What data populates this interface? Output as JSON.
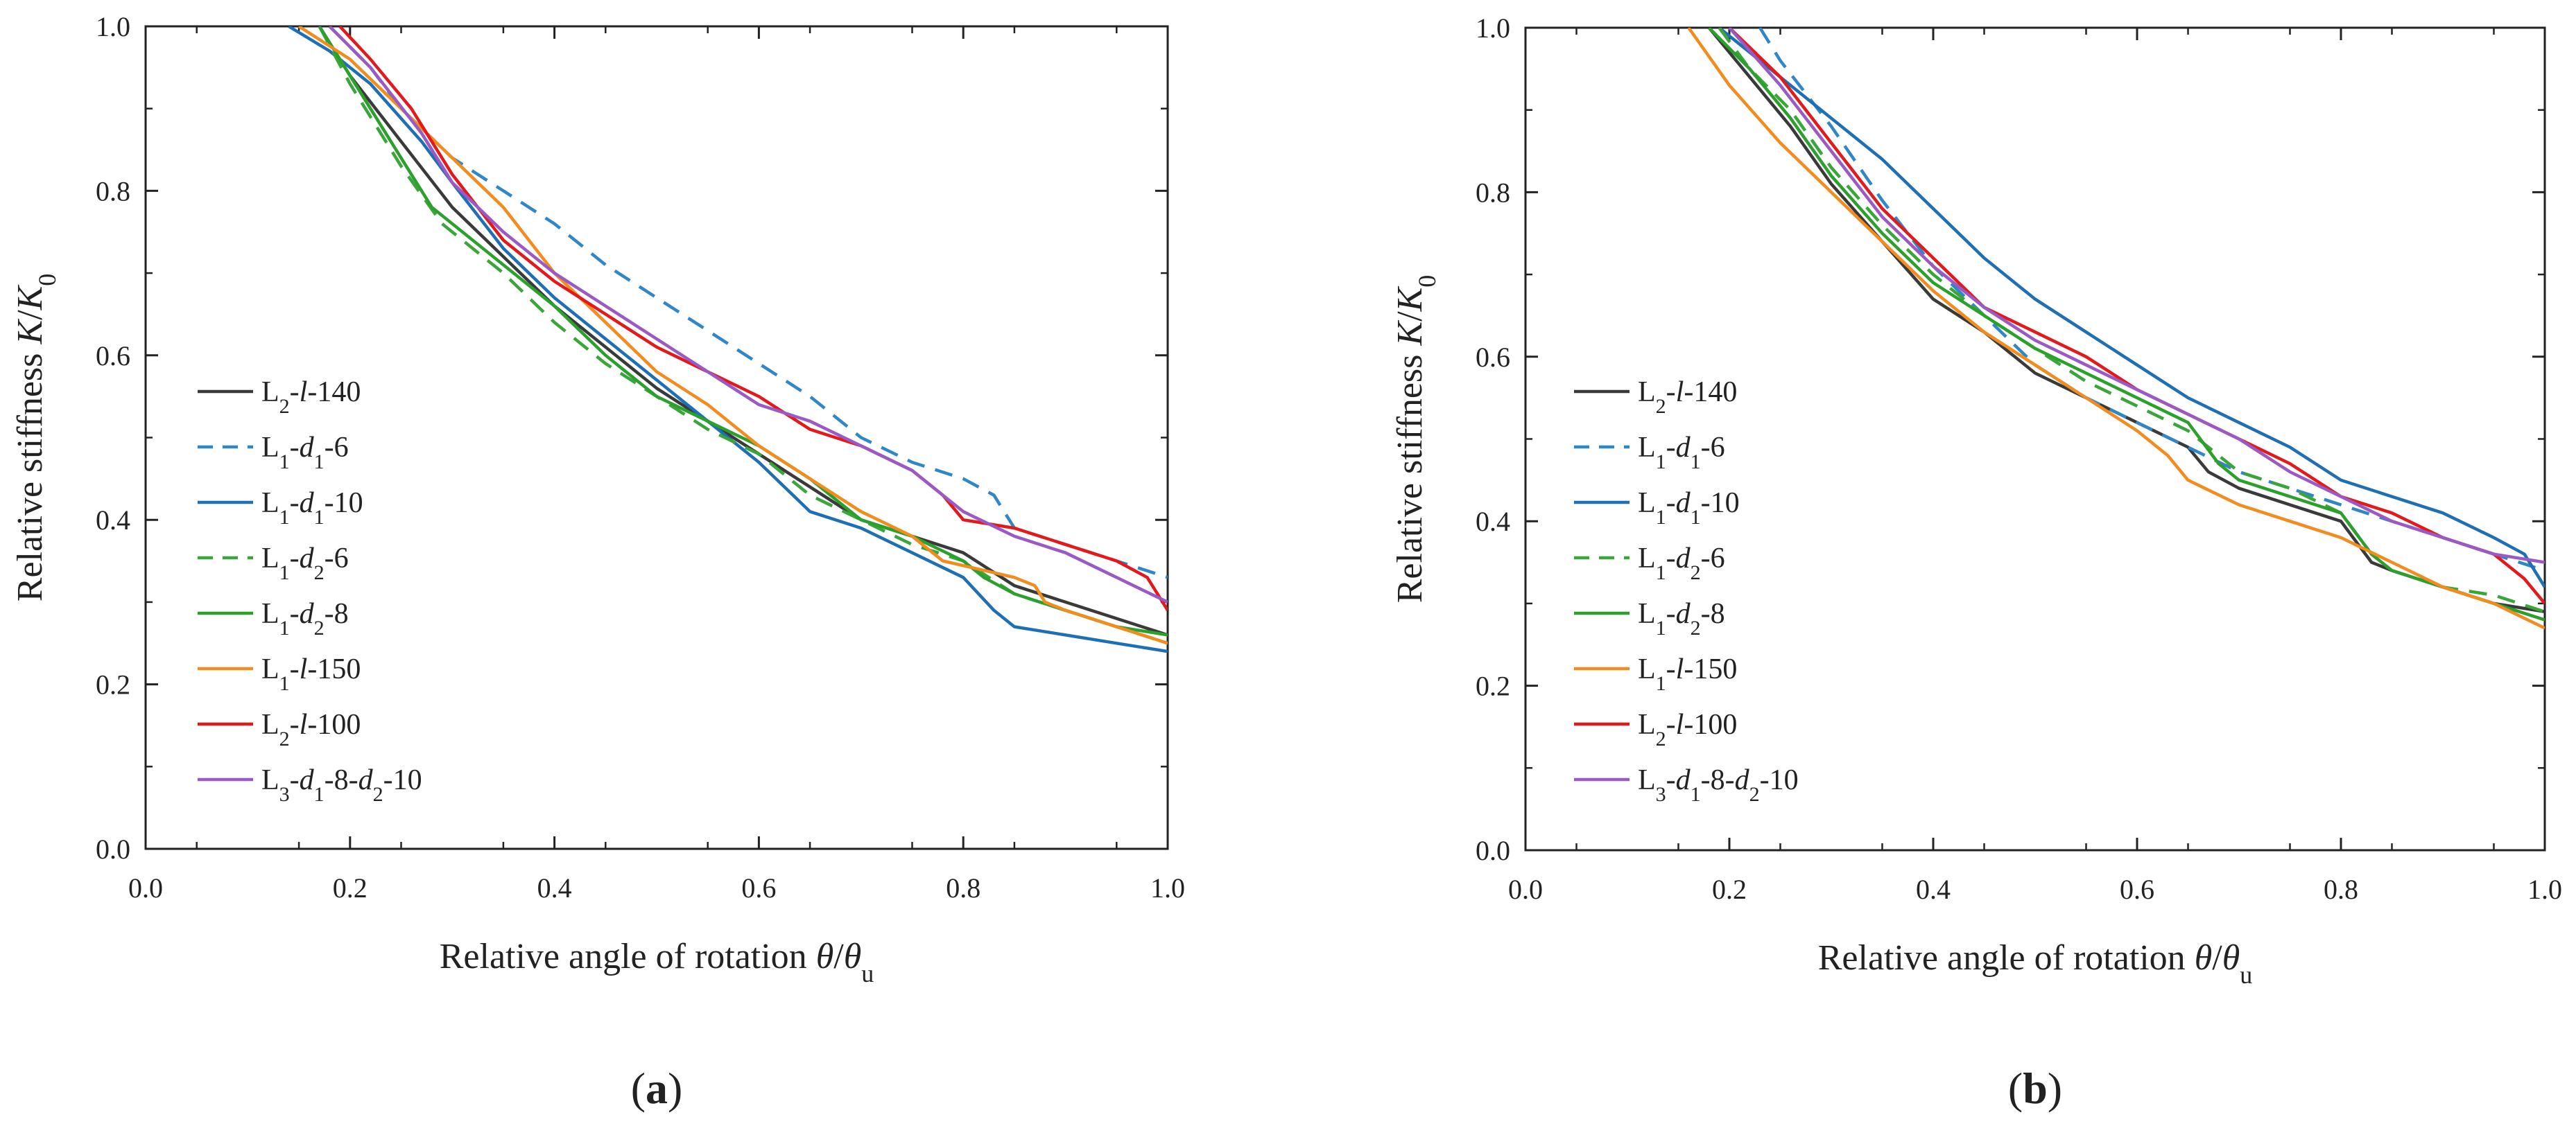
{
  "figure": {
    "panel_labels": [
      "(a)",
      "(b)"
    ]
  },
  "chart_data": [
    {
      "type": "line",
      "panel": "(a)",
      "xlabel": "Relative angle of rotation θ/θu",
      "ylabel": "Relative stiffness K/K0",
      "xlim": [
        0.0,
        1.0
      ],
      "ylim": [
        0.0,
        1.0
      ],
      "xticks": [
        "0.0",
        "0.2",
        "0.4",
        "0.6",
        "0.8",
        "1.0"
      ],
      "yticks": [
        "0.0",
        "0.2",
        "0.4",
        "0.6",
        "0.8",
        "1.0"
      ],
      "grid": false,
      "legend_position": "center-left",
      "series": [
        {
          "name": "L2-l-140",
          "color": "#3a3a3a",
          "dash": false,
          "x": [
            0.17,
            0.2,
            0.25,
            0.3,
            0.35,
            0.4,
            0.45,
            0.5,
            0.55,
            0.6,
            0.65,
            0.7,
            0.75,
            0.8,
            0.85,
            0.9,
            0.95,
            1.0
          ],
          "y": [
            1.0,
            0.94,
            0.86,
            0.78,
            0.72,
            0.66,
            0.61,
            0.56,
            0.52,
            0.48,
            0.44,
            0.4,
            0.38,
            0.36,
            0.32,
            0.3,
            0.28,
            0.26
          ]
        },
        {
          "name": "L1-d1-6",
          "color": "#2f87c8",
          "dash": true,
          "x": [
            0.18,
            0.22,
            0.25,
            0.3,
            0.35,
            0.4,
            0.45,
            0.5,
            0.55,
            0.6,
            0.65,
            0.7,
            0.75,
            0.8,
            0.83,
            0.85,
            0.9,
            0.95,
            1.0
          ],
          "y": [
            1.0,
            0.95,
            0.9,
            0.84,
            0.8,
            0.76,
            0.71,
            0.67,
            0.63,
            0.59,
            0.55,
            0.5,
            0.47,
            0.45,
            0.43,
            0.39,
            0.37,
            0.35,
            0.33
          ]
        },
        {
          "name": "L1-d1-10",
          "color": "#1f6fb5",
          "dash": false,
          "x": [
            0.14,
            0.18,
            0.22,
            0.27,
            0.3,
            0.35,
            0.4,
            0.45,
            0.5,
            0.55,
            0.6,
            0.65,
            0.7,
            0.75,
            0.8,
            0.83,
            0.85,
            0.9,
            0.95,
            1.0
          ],
          "y": [
            1.0,
            0.97,
            0.93,
            0.86,
            0.81,
            0.73,
            0.67,
            0.62,
            0.57,
            0.52,
            0.47,
            0.41,
            0.39,
            0.36,
            0.33,
            0.29,
            0.27,
            0.26,
            0.25,
            0.24
          ]
        },
        {
          "name": "L1-d2-6",
          "color": "#3aa63a",
          "dash": true,
          "x": [
            0.17,
            0.2,
            0.25,
            0.29,
            0.35,
            0.4,
            0.45,
            0.5,
            0.55,
            0.6,
            0.65,
            0.7,
            0.75,
            0.8,
            0.85,
            0.9,
            0.95,
            1.0
          ],
          "y": [
            1.0,
            0.93,
            0.83,
            0.76,
            0.7,
            0.64,
            0.59,
            0.55,
            0.51,
            0.48,
            0.43,
            0.4,
            0.37,
            0.35,
            0.31,
            0.29,
            0.27,
            0.25
          ]
        },
        {
          "name": "L1-d2-8",
          "color": "#2ca02c",
          "dash": false,
          "x": [
            0.17,
            0.2,
            0.25,
            0.28,
            0.35,
            0.4,
            0.45,
            0.5,
            0.55,
            0.6,
            0.65,
            0.7,
            0.75,
            0.8,
            0.82,
            0.85,
            0.9,
            0.95,
            1.0
          ],
          "y": [
            1.0,
            0.94,
            0.84,
            0.78,
            0.71,
            0.66,
            0.6,
            0.55,
            0.52,
            0.49,
            0.45,
            0.4,
            0.38,
            0.35,
            0.33,
            0.31,
            0.29,
            0.27,
            0.26
          ]
        },
        {
          "name": "L1-l-150",
          "color": "#f28c1e",
          "dash": false,
          "x": [
            0.15,
            0.2,
            0.25,
            0.3,
            0.35,
            0.4,
            0.45,
            0.5,
            0.55,
            0.6,
            0.65,
            0.7,
            0.75,
            0.78,
            0.85,
            0.87,
            0.88,
            0.9,
            0.95,
            1.0
          ],
          "y": [
            1.0,
            0.96,
            0.9,
            0.84,
            0.78,
            0.7,
            0.64,
            0.58,
            0.54,
            0.49,
            0.45,
            0.41,
            0.38,
            0.35,
            0.33,
            0.32,
            0.3,
            0.29,
            0.27,
            0.25
          ]
        },
        {
          "name": "L2-l-100",
          "color": "#e31a1c",
          "dash": false,
          "x": [
            0.19,
            0.22,
            0.26,
            0.3,
            0.35,
            0.4,
            0.45,
            0.5,
            0.55,
            0.6,
            0.65,
            0.7,
            0.75,
            0.78,
            0.8,
            0.85,
            0.9,
            0.95,
            0.98,
            1.0
          ],
          "y": [
            1.0,
            0.96,
            0.9,
            0.82,
            0.74,
            0.69,
            0.65,
            0.61,
            0.58,
            0.55,
            0.51,
            0.49,
            0.46,
            0.43,
            0.4,
            0.39,
            0.37,
            0.35,
            0.33,
            0.29
          ]
        },
        {
          "name": "L3-d1-8-d2-10",
          "color": "#9b59c4",
          "dash": false,
          "x": [
            0.18,
            0.22,
            0.27,
            0.3,
            0.35,
            0.4,
            0.45,
            0.5,
            0.55,
            0.6,
            0.65,
            0.7,
            0.75,
            0.78,
            0.8,
            0.85,
            0.9,
            0.95,
            1.0
          ],
          "y": [
            1.0,
            0.95,
            0.87,
            0.81,
            0.75,
            0.7,
            0.66,
            0.62,
            0.58,
            0.54,
            0.52,
            0.49,
            0.46,
            0.43,
            0.41,
            0.38,
            0.36,
            0.33,
            0.3
          ]
        }
      ]
    },
    {
      "type": "line",
      "panel": "(b)",
      "xlabel": "Relative angle of rotation θ/θu",
      "ylabel": "Relative stiffness K/K0",
      "xlim": [
        0.0,
        1.0
      ],
      "ylim": [
        0.0,
        1.0
      ],
      "xticks": [
        "0.0",
        "0.2",
        "0.4",
        "0.6",
        "0.8",
        "1.0"
      ],
      "yticks": [
        "0.0",
        "0.2",
        "0.4",
        "0.6",
        "0.8",
        "1.0"
      ],
      "grid": false,
      "legend_position": "center-left",
      "series": [
        {
          "name": "L2-l-140",
          "color": "#3a3a3a",
          "dash": false,
          "x": [
            0.18,
            0.22,
            0.26,
            0.3,
            0.35,
            0.4,
            0.45,
            0.5,
            0.55,
            0.6,
            0.65,
            0.67,
            0.7,
            0.75,
            0.8,
            0.83,
            0.85,
            0.9,
            0.95,
            1.0
          ],
          "y": [
            1.0,
            0.94,
            0.88,
            0.81,
            0.74,
            0.67,
            0.63,
            0.58,
            0.55,
            0.52,
            0.49,
            0.46,
            0.44,
            0.42,
            0.4,
            0.35,
            0.34,
            0.32,
            0.3,
            0.29
          ]
        },
        {
          "name": "L1-d1-6",
          "color": "#2f87c8",
          "dash": true,
          "x": [
            0.23,
            0.25,
            0.3,
            0.35,
            0.4,
            0.45,
            0.5,
            0.55,
            0.6,
            0.65,
            0.7,
            0.75,
            0.8,
            0.85,
            0.9,
            0.95,
            1.0
          ],
          "y": [
            1.0,
            0.96,
            0.88,
            0.79,
            0.71,
            0.65,
            0.59,
            0.55,
            0.52,
            0.49,
            0.46,
            0.44,
            0.42,
            0.4,
            0.38,
            0.36,
            0.34
          ]
        },
        {
          "name": "L1-d1-10",
          "color": "#1f6fb5",
          "dash": false,
          "x": [
            0.19,
            0.22,
            0.25,
            0.3,
            0.35,
            0.4,
            0.45,
            0.5,
            0.55,
            0.6,
            0.65,
            0.7,
            0.75,
            0.8,
            0.85,
            0.9,
            0.95,
            0.98,
            1.0
          ],
          "y": [
            1.0,
            0.97,
            0.94,
            0.89,
            0.84,
            0.78,
            0.72,
            0.67,
            0.63,
            0.59,
            0.55,
            0.52,
            0.49,
            0.45,
            0.43,
            0.41,
            0.38,
            0.36,
            0.32
          ]
        },
        {
          "name": "L1-d2-6",
          "color": "#3aa63a",
          "dash": true,
          "x": [
            0.19,
            0.22,
            0.26,
            0.3,
            0.35,
            0.4,
            0.45,
            0.5,
            0.55,
            0.6,
            0.65,
            0.7,
            0.75,
            0.8,
            0.83,
            0.85,
            0.9,
            0.95,
            1.0
          ],
          "y": [
            1.0,
            0.95,
            0.9,
            0.83,
            0.76,
            0.7,
            0.65,
            0.61,
            0.57,
            0.54,
            0.51,
            0.46,
            0.44,
            0.41,
            0.36,
            0.34,
            0.32,
            0.31,
            0.29
          ]
        },
        {
          "name": "L1-d2-8",
          "color": "#2ca02c",
          "dash": false,
          "x": [
            0.18,
            0.22,
            0.26,
            0.3,
            0.35,
            0.4,
            0.45,
            0.5,
            0.55,
            0.6,
            0.65,
            0.68,
            0.7,
            0.75,
            0.8,
            0.83,
            0.85,
            0.9,
            0.95,
            1.0
          ],
          "y": [
            1.0,
            0.95,
            0.89,
            0.82,
            0.75,
            0.69,
            0.65,
            0.61,
            0.58,
            0.55,
            0.52,
            0.47,
            0.45,
            0.43,
            0.41,
            0.36,
            0.34,
            0.32,
            0.3,
            0.28
          ]
        },
        {
          "name": "L1-l-150",
          "color": "#f28c1e",
          "dash": false,
          "x": [
            0.16,
            0.2,
            0.25,
            0.3,
            0.35,
            0.4,
            0.45,
            0.5,
            0.55,
            0.6,
            0.63,
            0.65,
            0.7,
            0.75,
            0.8,
            0.85,
            0.9,
            0.95,
            1.0
          ],
          "y": [
            1.0,
            0.93,
            0.86,
            0.8,
            0.74,
            0.68,
            0.63,
            0.59,
            0.55,
            0.51,
            0.48,
            0.45,
            0.42,
            0.4,
            0.38,
            0.35,
            0.32,
            0.3,
            0.27
          ]
        },
        {
          "name": "L2-l-100",
          "color": "#e31a1c",
          "dash": false,
          "x": [
            0.2,
            0.25,
            0.3,
            0.35,
            0.4,
            0.45,
            0.5,
            0.55,
            0.6,
            0.65,
            0.7,
            0.75,
            0.8,
            0.85,
            0.9,
            0.95,
            0.98,
            1.0
          ],
          "y": [
            1.0,
            0.94,
            0.86,
            0.78,
            0.72,
            0.66,
            0.63,
            0.6,
            0.56,
            0.53,
            0.5,
            0.47,
            0.43,
            0.41,
            0.38,
            0.36,
            0.33,
            0.3
          ]
        },
        {
          "name": "L3-d1-8-d2-10",
          "color": "#9b59c4",
          "dash": false,
          "x": [
            0.2,
            0.25,
            0.3,
            0.35,
            0.4,
            0.45,
            0.5,
            0.55,
            0.6,
            0.65,
            0.7,
            0.75,
            0.8,
            0.85,
            0.9,
            0.95,
            1.0
          ],
          "y": [
            1.0,
            0.93,
            0.85,
            0.77,
            0.71,
            0.66,
            0.62,
            0.59,
            0.56,
            0.53,
            0.5,
            0.46,
            0.43,
            0.4,
            0.38,
            0.36,
            0.35
          ]
        }
      ]
    }
  ]
}
